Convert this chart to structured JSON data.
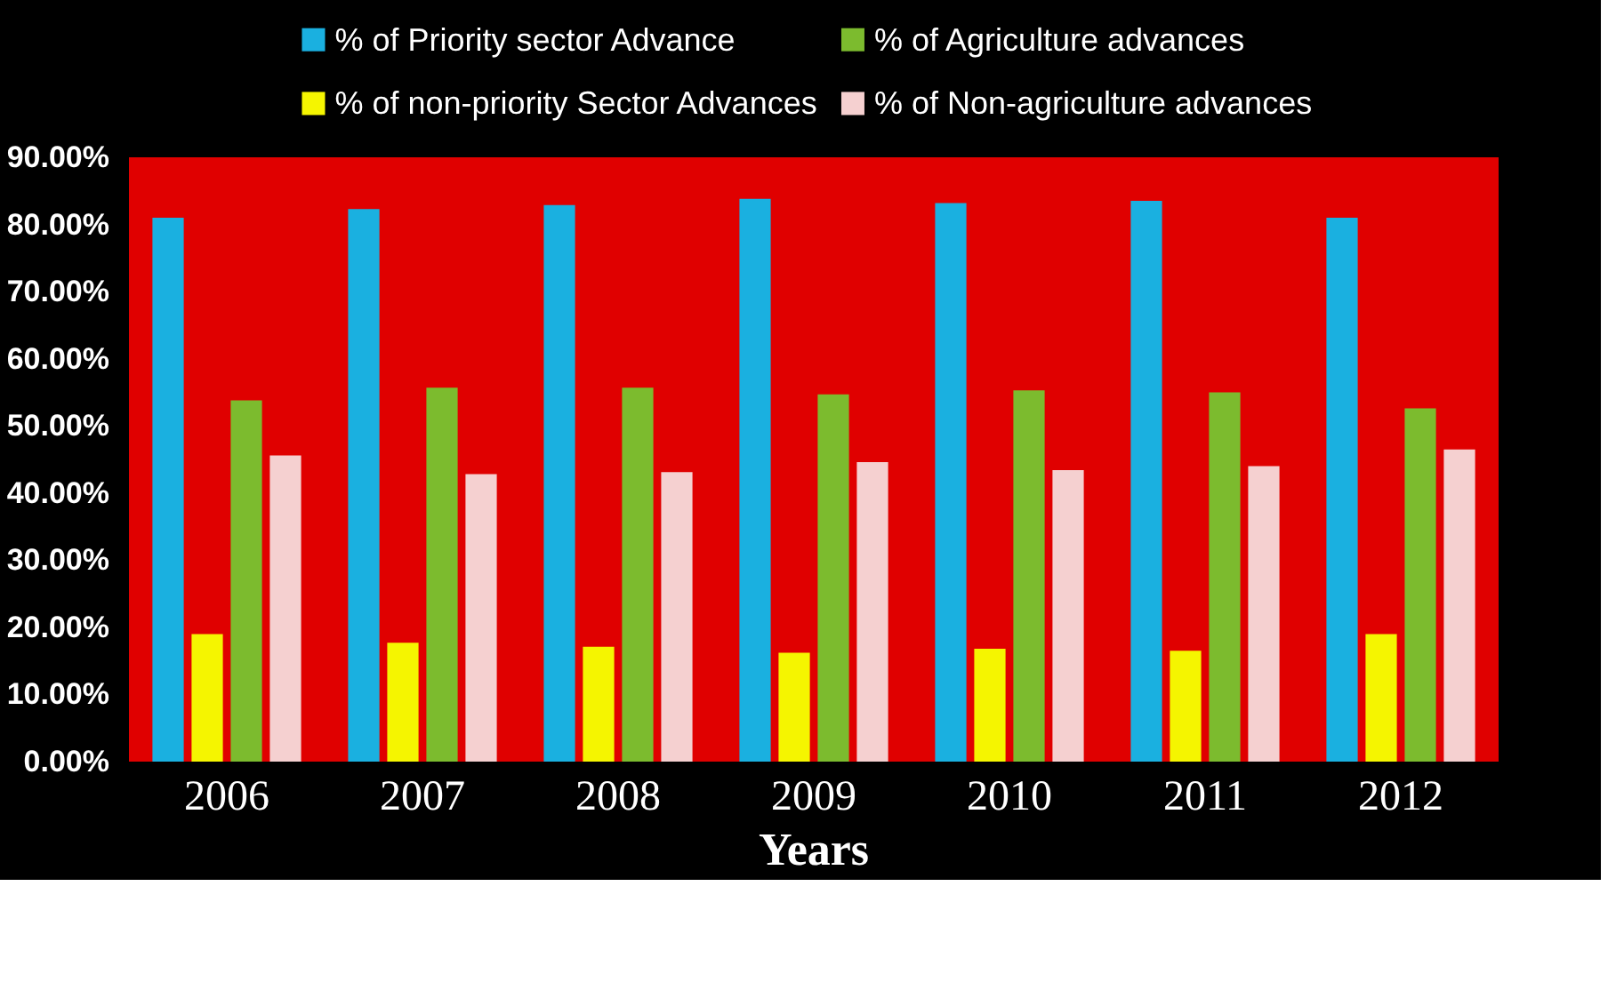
{
  "chart_data": {
    "type": "bar",
    "xlabel": "Years",
    "categories": [
      "2006",
      "2007",
      "2008",
      "2009",
      "2010",
      "2011",
      "2012"
    ],
    "series": [
      {
        "name": "% of Priority sector Advance",
        "color": "#1ab0e0",
        "values": [
          81.0,
          82.3,
          82.9,
          83.8,
          83.2,
          83.5,
          81.0
        ]
      },
      {
        "name": "% of non-priority Sector Advances",
        "color": "#f5f500",
        "values": [
          19.0,
          17.7,
          17.1,
          16.2,
          16.8,
          16.5,
          19.0
        ]
      },
      {
        "name": "% of Agriculture advances",
        "color": "#7cbb2e",
        "values": [
          53.8,
          55.7,
          55.7,
          54.7,
          55.3,
          55.0,
          52.6
        ]
      },
      {
        "name": "% of Non-agriculture advances",
        "color": "#f5d0d0",
        "values": [
          45.6,
          42.8,
          43.1,
          44.6,
          43.4,
          44.0,
          46.5
        ]
      }
    ],
    "ylim": [
      0,
      90
    ],
    "yticks": [
      {
        "value": 0,
        "label": "0.00%"
      },
      {
        "value": 10,
        "label": "10.00%"
      },
      {
        "value": 20,
        "label": "20.00%"
      },
      {
        "value": 30,
        "label": "30.00%"
      },
      {
        "value": 40,
        "label": "40.00%"
      },
      {
        "value": 50,
        "label": "50.00%"
      },
      {
        "value": 60,
        "label": "60.00%"
      },
      {
        "value": 70,
        "label": "70.00%"
      },
      {
        "value": 80,
        "label": "80.00%"
      },
      {
        "value": 90,
        "label": "90.00%"
      }
    ],
    "grid": false,
    "legend": "top"
  }
}
